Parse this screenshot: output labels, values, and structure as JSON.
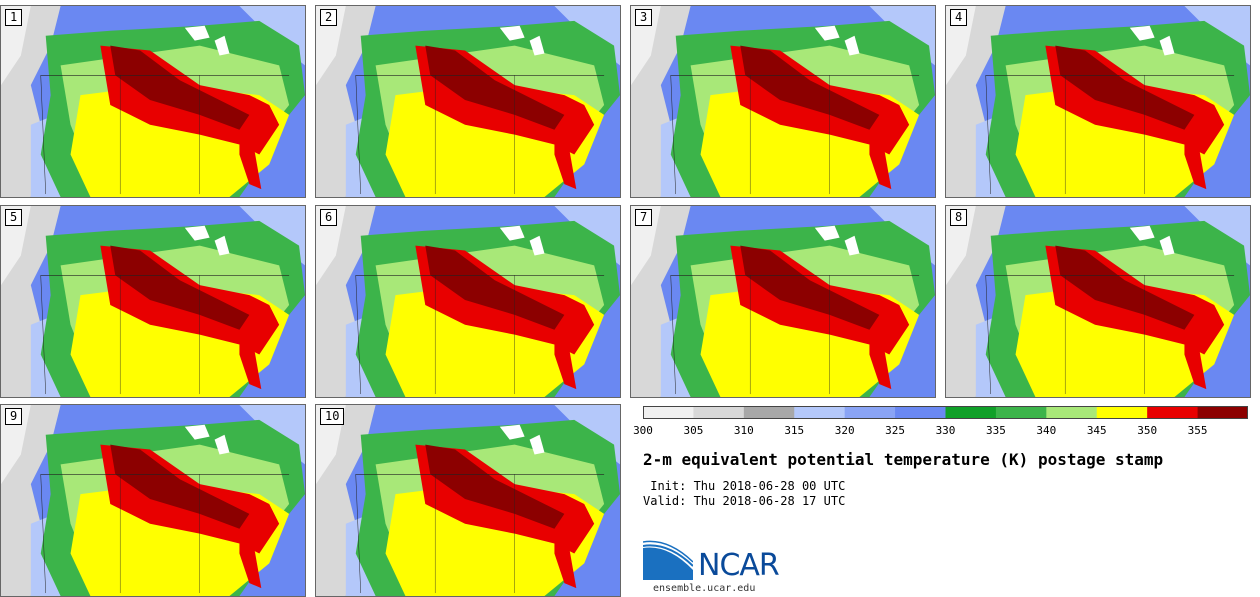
{
  "panels": [
    {
      "label": "1"
    },
    {
      "label": "2"
    },
    {
      "label": "3"
    },
    {
      "label": "4"
    },
    {
      "label": "5"
    },
    {
      "label": "6"
    },
    {
      "label": "7"
    },
    {
      "label": "8"
    },
    {
      "label": "9"
    },
    {
      "label": "10"
    }
  ],
  "colorbar": {
    "colors": [
      "#f0f0f0",
      "#d8d8d8",
      "#a8a8a8",
      "#b4c8fa",
      "#8aa4f5",
      "#6a88f2",
      "#10a028",
      "#3cb44a",
      "#a8e878",
      "#ffff00",
      "#e80000",
      "#8c0000"
    ],
    "ticks": [
      "300",
      "305",
      "310",
      "315",
      "320",
      "325",
      "330",
      "335",
      "340",
      "345",
      "350",
      "355"
    ]
  },
  "info": {
    "title": "2-m equivalent potential temperature (K) postage stamp",
    "init": " Init: Thu 2018-06-28 00 UTC",
    "valid": "Valid: Thu 2018-06-28 17 UTC"
  },
  "logo": {
    "text": "NCAR",
    "url": "ensemble.ucar.edu"
  }
}
